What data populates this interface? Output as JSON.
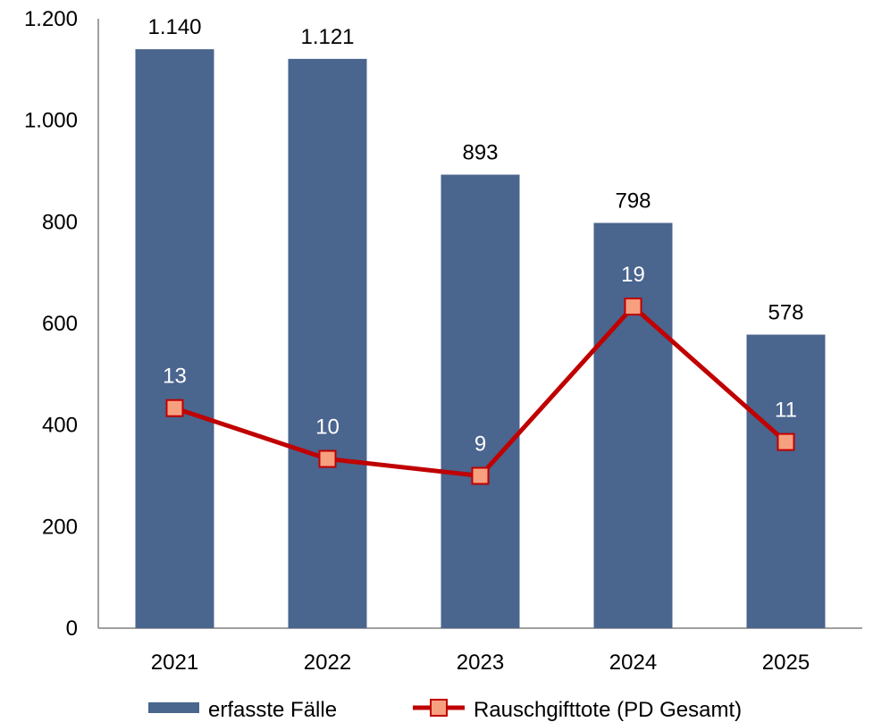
{
  "chart_data": {
    "type": "bar",
    "categories": [
      "2021",
      "2022",
      "2023",
      "2024",
      "2025"
    ],
    "series": [
      {
        "name": "erfasste Fälle",
        "kind": "bar",
        "values": [
          1140,
          1121,
          893,
          798,
          578
        ],
        "value_labels": [
          "1.140",
          "1.121",
          "893",
          "798",
          "578"
        ],
        "color": "#4a658e"
      },
      {
        "name": "Rauschgifttote (PD Gesamt)",
        "kind": "line",
        "values": [
          13,
          10,
          9,
          19,
          11
        ],
        "value_labels": [
          "13",
          "10",
          "9",
          "19",
          "11"
        ],
        "color": "#c00000",
        "marker_color": "#f7a07f",
        "secondary_axis": true,
        "secondary_ylim": [
          0,
          36
        ]
      }
    ],
    "title": "",
    "xlabel": "",
    "ylabel": "",
    "ylim": [
      0,
      1200
    ],
    "y_ticks": [
      0,
      200,
      400,
      600,
      800,
      1000,
      1200
    ],
    "y_tick_labels": [
      "0",
      "200",
      "400",
      "600",
      "800",
      "1.000",
      "1.200"
    ],
    "grid": false,
    "legend_position": "bottom"
  }
}
